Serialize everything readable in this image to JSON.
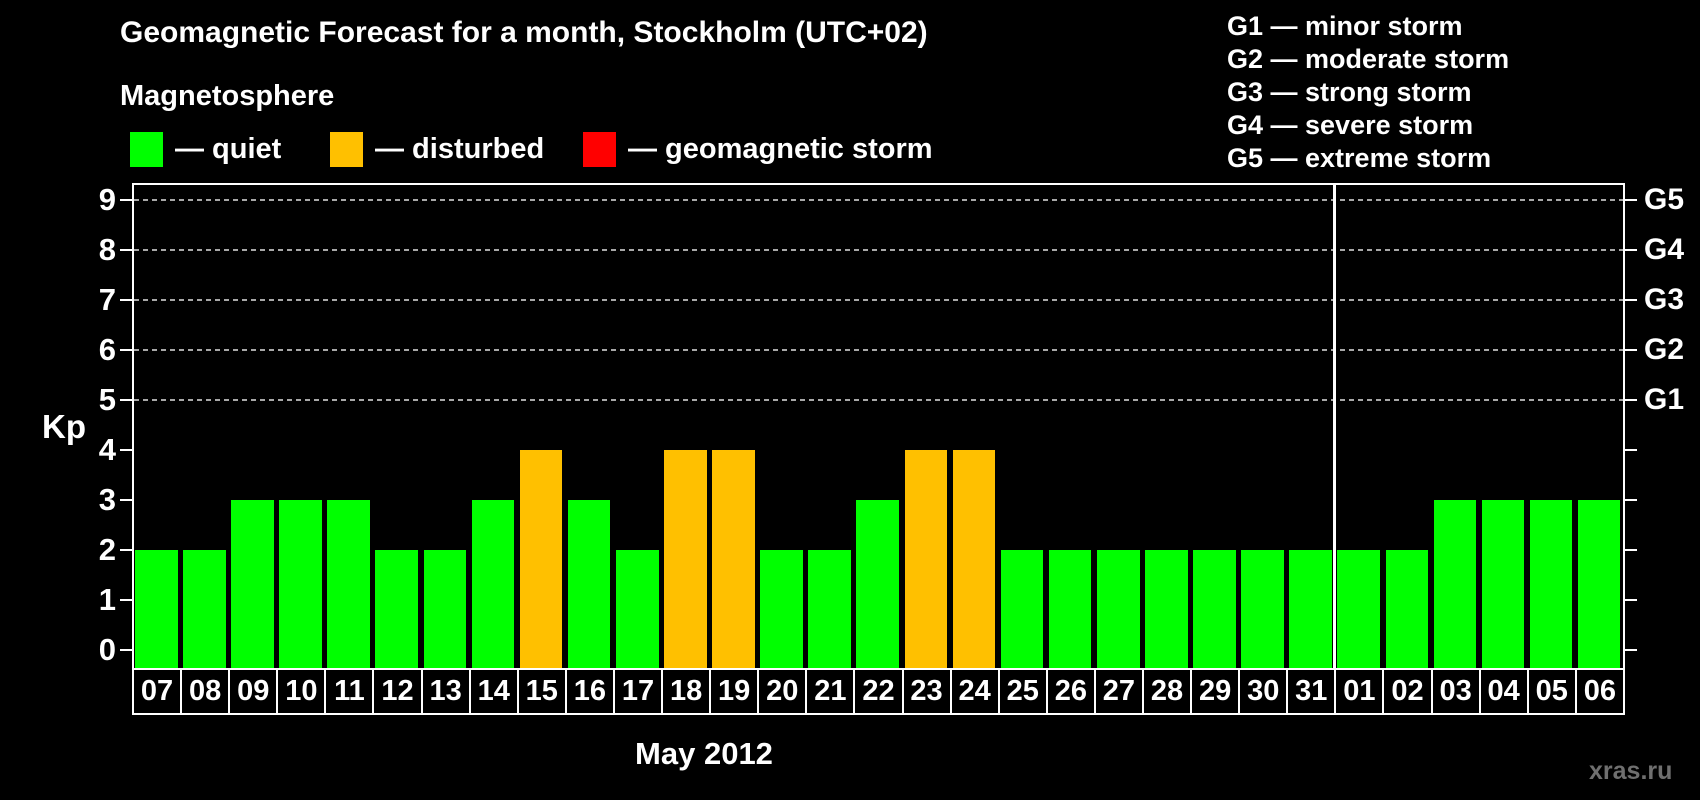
{
  "page": {
    "title": "Geomagnetic Forecast for a month, Stockholm (UTC+02)",
    "subtitle": "Magnetosphere",
    "watermark": "xras.ru"
  },
  "legend": {
    "items": [
      {
        "name": "quiet",
        "swatch_color": "#00ff00",
        "label": "— quiet"
      },
      {
        "name": "disturbed",
        "swatch_color": "#ffc000",
        "label": "— disturbed"
      },
      {
        "name": "storm",
        "swatch_color": "#ff0000",
        "label": "— geomagnetic storm"
      }
    ]
  },
  "g_legend": {
    "lines": [
      "G1 — minor storm",
      "G2 — moderate storm",
      "G3 — strong storm",
      "G4 — severe storm",
      "G5 — extreme storm"
    ]
  },
  "x_axis": {
    "month_label": "May 2012"
  },
  "chart_data": {
    "type": "bar",
    "title": "Geomagnetic Forecast for a month, Stockholm (UTC+02)",
    "ylabel": "Kp",
    "xlabel": "May 2012",
    "ylim": [
      0,
      9.6
    ],
    "yticks": [
      0,
      1,
      2,
      3,
      4,
      5,
      6,
      7,
      8,
      9
    ],
    "gridlines_at_kp": [
      5,
      6,
      7,
      8,
      9
    ],
    "grid": "dashed horizontal lines at Kp 5-9 only",
    "legend_position": "top-left",
    "right_axis": [
      {
        "kp": 5,
        "label": "G1"
      },
      {
        "kp": 6,
        "label": "G2"
      },
      {
        "kp": 7,
        "label": "G3"
      },
      {
        "kp": 8,
        "label": "G4"
      },
      {
        "kp": 9,
        "label": "G5"
      }
    ],
    "month_separator_after_category_index": 24,
    "state_colors": {
      "quiet": "#00ff00",
      "disturbed": "#ffc000",
      "storm": "#ff0000"
    },
    "categories": [
      "07",
      "08",
      "09",
      "10",
      "11",
      "12",
      "13",
      "14",
      "15",
      "16",
      "17",
      "18",
      "19",
      "20",
      "21",
      "22",
      "23",
      "24",
      "25",
      "26",
      "27",
      "28",
      "29",
      "30",
      "31",
      "01",
      "02",
      "03",
      "04",
      "05",
      "06"
    ],
    "series": [
      {
        "day": "07",
        "kp": 2,
        "state": "quiet"
      },
      {
        "day": "08",
        "kp": 2,
        "state": "quiet"
      },
      {
        "day": "09",
        "kp": 3,
        "state": "quiet"
      },
      {
        "day": "10",
        "kp": 3,
        "state": "quiet"
      },
      {
        "day": "11",
        "kp": 3,
        "state": "quiet"
      },
      {
        "day": "12",
        "kp": 2,
        "state": "quiet"
      },
      {
        "day": "13",
        "kp": 2,
        "state": "quiet"
      },
      {
        "day": "14",
        "kp": 3,
        "state": "quiet"
      },
      {
        "day": "15",
        "kp": 4,
        "state": "disturbed"
      },
      {
        "day": "16",
        "kp": 3,
        "state": "quiet"
      },
      {
        "day": "17",
        "kp": 2,
        "state": "quiet"
      },
      {
        "day": "18",
        "kp": 4,
        "state": "disturbed"
      },
      {
        "day": "19",
        "kp": 4,
        "state": "disturbed"
      },
      {
        "day": "20",
        "kp": 2,
        "state": "quiet"
      },
      {
        "day": "21",
        "kp": 2,
        "state": "quiet"
      },
      {
        "day": "22",
        "kp": 3,
        "state": "quiet"
      },
      {
        "day": "23",
        "kp": 4,
        "state": "disturbed"
      },
      {
        "day": "24",
        "kp": 4,
        "state": "disturbed"
      },
      {
        "day": "25",
        "kp": 2,
        "state": "quiet"
      },
      {
        "day": "26",
        "kp": 2,
        "state": "quiet"
      },
      {
        "day": "27",
        "kp": 2,
        "state": "quiet"
      },
      {
        "day": "28",
        "kp": 2,
        "state": "quiet"
      },
      {
        "day": "29",
        "kp": 2,
        "state": "quiet"
      },
      {
        "day": "30",
        "kp": 2,
        "state": "quiet"
      },
      {
        "day": "31",
        "kp": 2,
        "state": "quiet"
      },
      {
        "day": "01",
        "kp": 2,
        "state": "quiet"
      },
      {
        "day": "02",
        "kp": 2,
        "state": "quiet"
      },
      {
        "day": "03",
        "kp": 3,
        "state": "quiet"
      },
      {
        "day": "04",
        "kp": 3,
        "state": "quiet"
      },
      {
        "day": "05",
        "kp": 3,
        "state": "quiet"
      },
      {
        "day": "06",
        "kp": 3,
        "state": "quiet"
      }
    ]
  }
}
